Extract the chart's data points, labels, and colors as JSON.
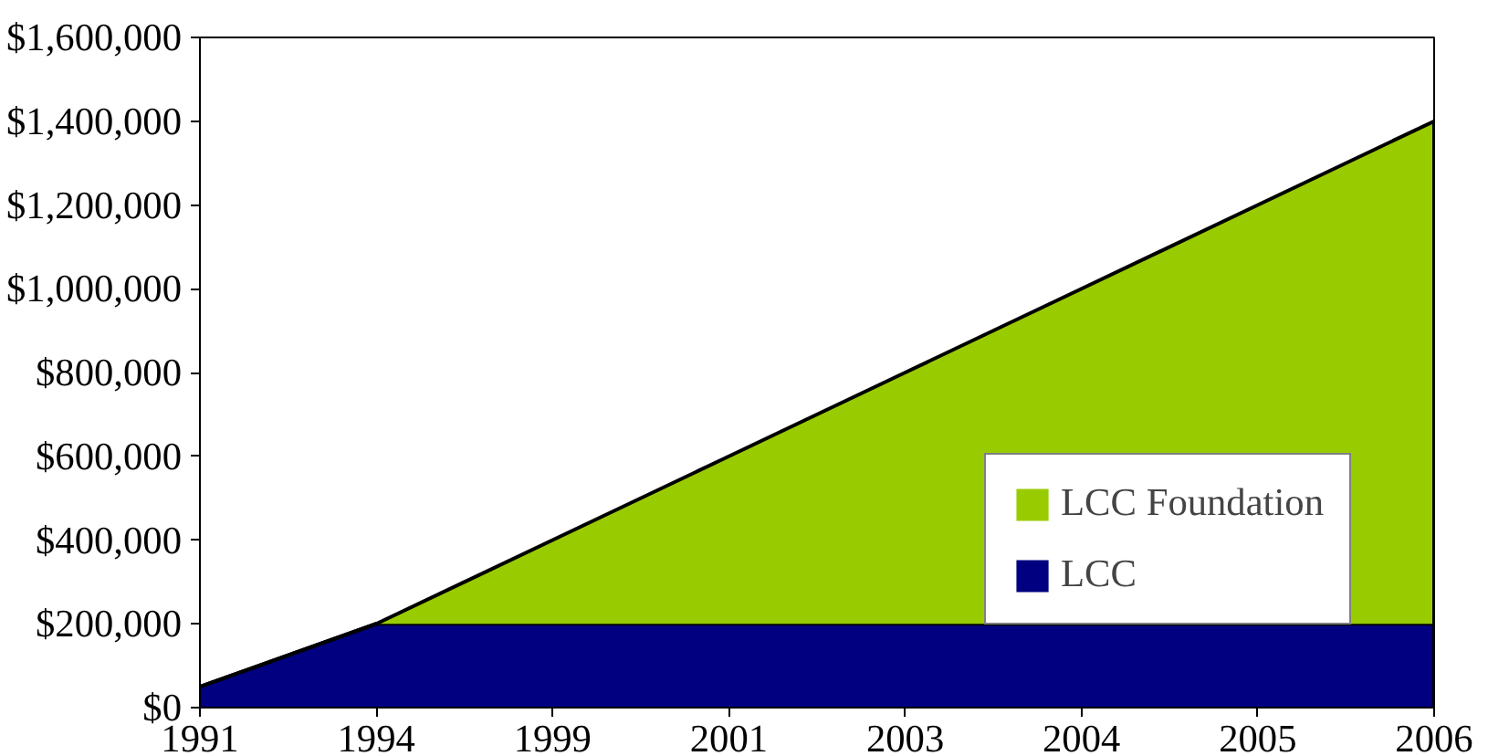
{
  "chart_data": {
    "type": "area",
    "stacked": true,
    "legend": "right",
    "grid": false,
    "categories": [
      "1991",
      "1994",
      "1999",
      "2001",
      "2003",
      "2004",
      "2005",
      "2006"
    ],
    "ylim": [
      0,
      1600000
    ],
    "yticks": [
      {
        "value": 0,
        "label": "$0"
      },
      {
        "value": 200000,
        "label": "$200,000"
      },
      {
        "value": 400000,
        "label": "$400,000"
      },
      {
        "value": 600000,
        "label": "$600,000"
      },
      {
        "value": 800000,
        "label": "$800,000"
      },
      {
        "value": 1000000,
        "label": "$1,000,000"
      },
      {
        "value": 1200000,
        "label": "$1,200,000"
      },
      {
        "value": 1400000,
        "label": "$1,400,000"
      },
      {
        "value": 1600000,
        "label": "$1,600,000"
      }
    ],
    "series": [
      {
        "name": "LCC",
        "color": "#000080",
        "values": [
          50000,
          200000,
          200000,
          200000,
          200000,
          200000,
          200000,
          200000
        ]
      },
      {
        "name": "LCC Foundation",
        "color": "#99cc00",
        "values": [
          0,
          0,
          200000,
          400000,
          600000,
          800000,
          1000000,
          1200000
        ]
      }
    ]
  }
}
